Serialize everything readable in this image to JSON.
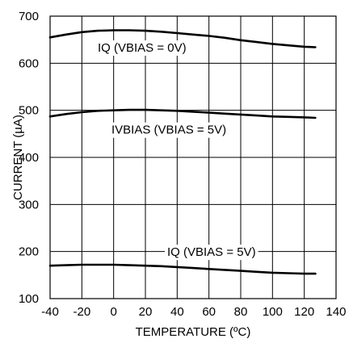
{
  "chart_data": {
    "type": "line",
    "xlabel": "TEMPERATURE (ºC)",
    "ylabel": "CURRENT (µA)",
    "xlim": [
      -40,
      140
    ],
    "ylim": [
      100,
      700
    ],
    "xticks": [
      -40,
      -20,
      0,
      20,
      40,
      60,
      80,
      100,
      120,
      140
    ],
    "yticks": [
      100,
      200,
      300,
      400,
      500,
      600,
      700
    ],
    "grid": true,
    "series": [
      {
        "name": "IQ (VBIAS = 0V)",
        "points": [
          [
            -40,
            655
          ],
          [
            -30,
            661
          ],
          [
            -20,
            666
          ],
          [
            -10,
            669
          ],
          [
            0,
            670
          ],
          [
            10,
            670
          ],
          [
            20,
            669
          ],
          [
            30,
            667
          ],
          [
            40,
            664
          ],
          [
            50,
            661
          ],
          [
            60,
            658
          ],
          [
            70,
            654
          ],
          [
            80,
            649
          ],
          [
            90,
            645
          ],
          [
            100,
            641
          ],
          [
            110,
            638
          ],
          [
            120,
            635
          ],
          [
            127,
            634
          ]
        ]
      },
      {
        "name": "IVBIAS (VBIAS = 5V)",
        "points": [
          [
            -40,
            487
          ],
          [
            -30,
            492
          ],
          [
            -20,
            496
          ],
          [
            -10,
            499
          ],
          [
            0,
            500
          ],
          [
            10,
            501
          ],
          [
            20,
            501
          ],
          [
            30,
            500
          ],
          [
            40,
            499
          ],
          [
            50,
            497
          ],
          [
            60,
            495
          ],
          [
            70,
            493
          ],
          [
            80,
            491
          ],
          [
            90,
            489
          ],
          [
            100,
            487
          ],
          [
            110,
            486
          ],
          [
            120,
            485
          ],
          [
            127,
            484
          ]
        ]
      },
      {
        "name": "IQ (VBIAS = 5V)",
        "points": [
          [
            -40,
            170
          ],
          [
            -30,
            171
          ],
          [
            -20,
            172
          ],
          [
            -10,
            172
          ],
          [
            0,
            172
          ],
          [
            10,
            171
          ],
          [
            20,
            170
          ],
          [
            30,
            169
          ],
          [
            40,
            167
          ],
          [
            50,
            165
          ],
          [
            60,
            163
          ],
          [
            70,
            161
          ],
          [
            80,
            159
          ],
          [
            90,
            157
          ],
          [
            100,
            155
          ],
          [
            110,
            154
          ],
          [
            120,
            153
          ],
          [
            127,
            153
          ]
        ]
      }
    ]
  }
}
